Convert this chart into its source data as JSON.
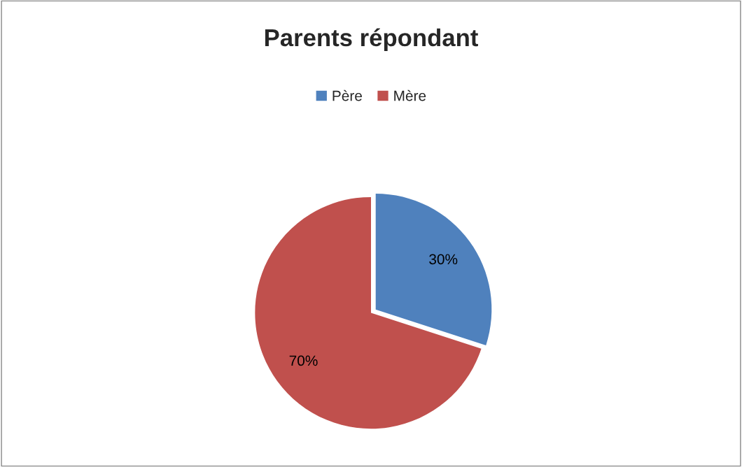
{
  "chart_data": {
    "type": "pie",
    "title": "Parents répondant",
    "categories": [
      "Père",
      "Mère"
    ],
    "values": [
      30,
      70
    ],
    "colors": [
      "#4f81bd",
      "#c0504d"
    ],
    "value_labels": [
      "30%",
      "70%"
    ],
    "legend": "top"
  }
}
